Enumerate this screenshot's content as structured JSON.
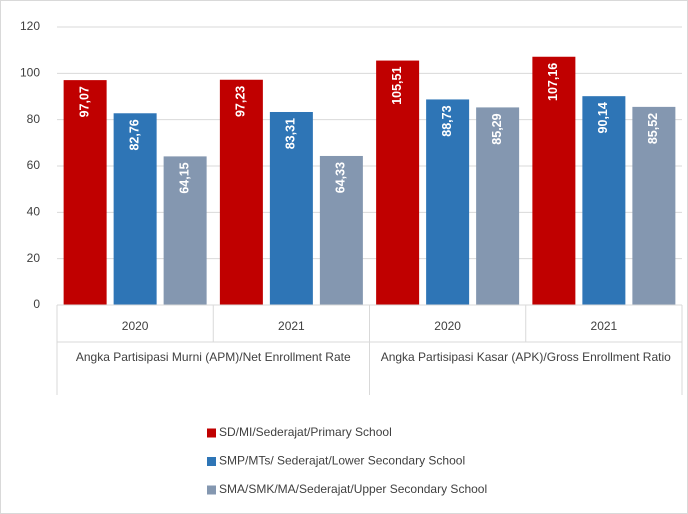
{
  "chart_data": {
    "type": "bar",
    "categories": [
      "2020",
      "2021",
      "2020",
      "2021"
    ],
    "group_labels": [
      "Angka Partisipasi Murni (APM)/Net Enrollment Rate",
      "Angka Partisipasi Kasar (APK)/Gross Enrollment Ratio"
    ],
    "series": [
      {
        "name": "SD/MI/Sederajat/Primary School",
        "color": "#c00000",
        "values": [
          97.07,
          97.23,
          105.51,
          107.16
        ],
        "value_labels": [
          "97,07",
          "97,23",
          "105,51",
          "107,16"
        ]
      },
      {
        "name": "SMP/MTs/ Sederajat/Lower Secondary School",
        "color": "#2e75b6",
        "values": [
          82.76,
          83.31,
          88.73,
          90.14
        ],
        "value_labels": [
          "82,76",
          "83,31",
          "88,73",
          "90,14"
        ]
      },
      {
        "name": "SMA/SMK/MA/Sederajat/Upper Secondary School",
        "color": "#8497b0",
        "values": [
          64.15,
          64.33,
          85.29,
          85.52
        ],
        "value_labels": [
          "64,15",
          "64,33",
          "85,29",
          "85,52"
        ]
      }
    ],
    "ylim": [
      0,
      120
    ],
    "yticks": [
      0,
      20,
      40,
      60,
      80,
      100,
      120
    ],
    "grid": true,
    "legend": "bottom"
  }
}
